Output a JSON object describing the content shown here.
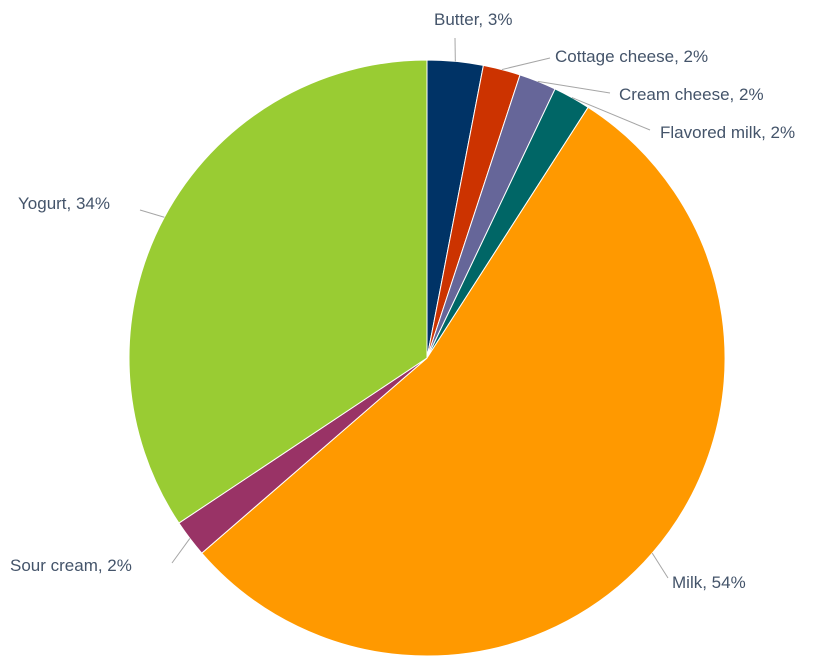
{
  "chart_data": {
    "type": "pie",
    "title": "",
    "slices": [
      {
        "name": "Butter",
        "value": 3,
        "label": "Butter, 3%",
        "color": "#003366"
      },
      {
        "name": "Cottage cheese",
        "value": 2,
        "label": "Cottage cheese, 2%",
        "color": "#cc3300"
      },
      {
        "name": "Cream cheese",
        "value": 2,
        "label": "Cream cheese, 2%",
        "color": "#666699"
      },
      {
        "name": "Flavored milk",
        "value": 2,
        "label": "Flavored milk, 2%",
        "color": "#006666"
      },
      {
        "name": "Milk",
        "value": 54,
        "label": "Milk, 54%",
        "color": "#ff9900"
      },
      {
        "name": "Sour cream",
        "value": 2,
        "label": "Sour cream, 2%",
        "color": "#993366"
      },
      {
        "name": "Yogurt",
        "value": 34,
        "label": "Yogurt, 34%",
        "color": "#99cc33"
      }
    ],
    "start_angle": "12 o'clock",
    "direction": "clockwise",
    "legend": "none",
    "data_labels": "outside with leader lines"
  }
}
